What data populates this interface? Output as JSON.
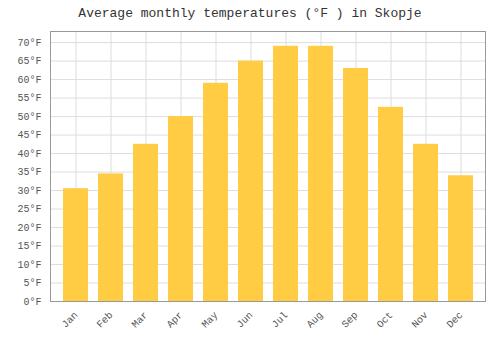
{
  "chart_data": {
    "type": "bar",
    "title": "Average monthly temperatures (°F ) in Skopje",
    "categories": [
      "Jan",
      "Feb",
      "Mar",
      "Apr",
      "May",
      "Jun",
      "Jul",
      "Aug",
      "Sep",
      "Oct",
      "Nov",
      "Dec"
    ],
    "values": [
      30.5,
      34.5,
      42.5,
      50.0,
      59.0,
      65.0,
      69.0,
      69.0,
      63.0,
      52.5,
      42.5,
      34.0
    ],
    "color": "#FFCC44",
    "ylim": [
      0,
      73
    ],
    "yticks": [
      {
        "value": 0,
        "label": "0°F"
      },
      {
        "value": 5,
        "label": "5°F"
      },
      {
        "value": 10,
        "label": "10°F"
      },
      {
        "value": 15,
        "label": "15°F"
      },
      {
        "value": 20,
        "label": "20°F"
      },
      {
        "value": 25,
        "label": "25°F"
      },
      {
        "value": 30,
        "label": "30°F"
      },
      {
        "value": 35,
        "label": "35°F"
      },
      {
        "value": 40,
        "label": "40°F"
      },
      {
        "value": 45,
        "label": "45°F"
      },
      {
        "value": 50,
        "label": "50°F"
      },
      {
        "value": 55,
        "label": "55°F"
      },
      {
        "value": 60,
        "label": "60°F"
      },
      {
        "value": 65,
        "label": "65°F"
      },
      {
        "value": 70,
        "label": "70°F"
      }
    ],
    "grid": true
  }
}
